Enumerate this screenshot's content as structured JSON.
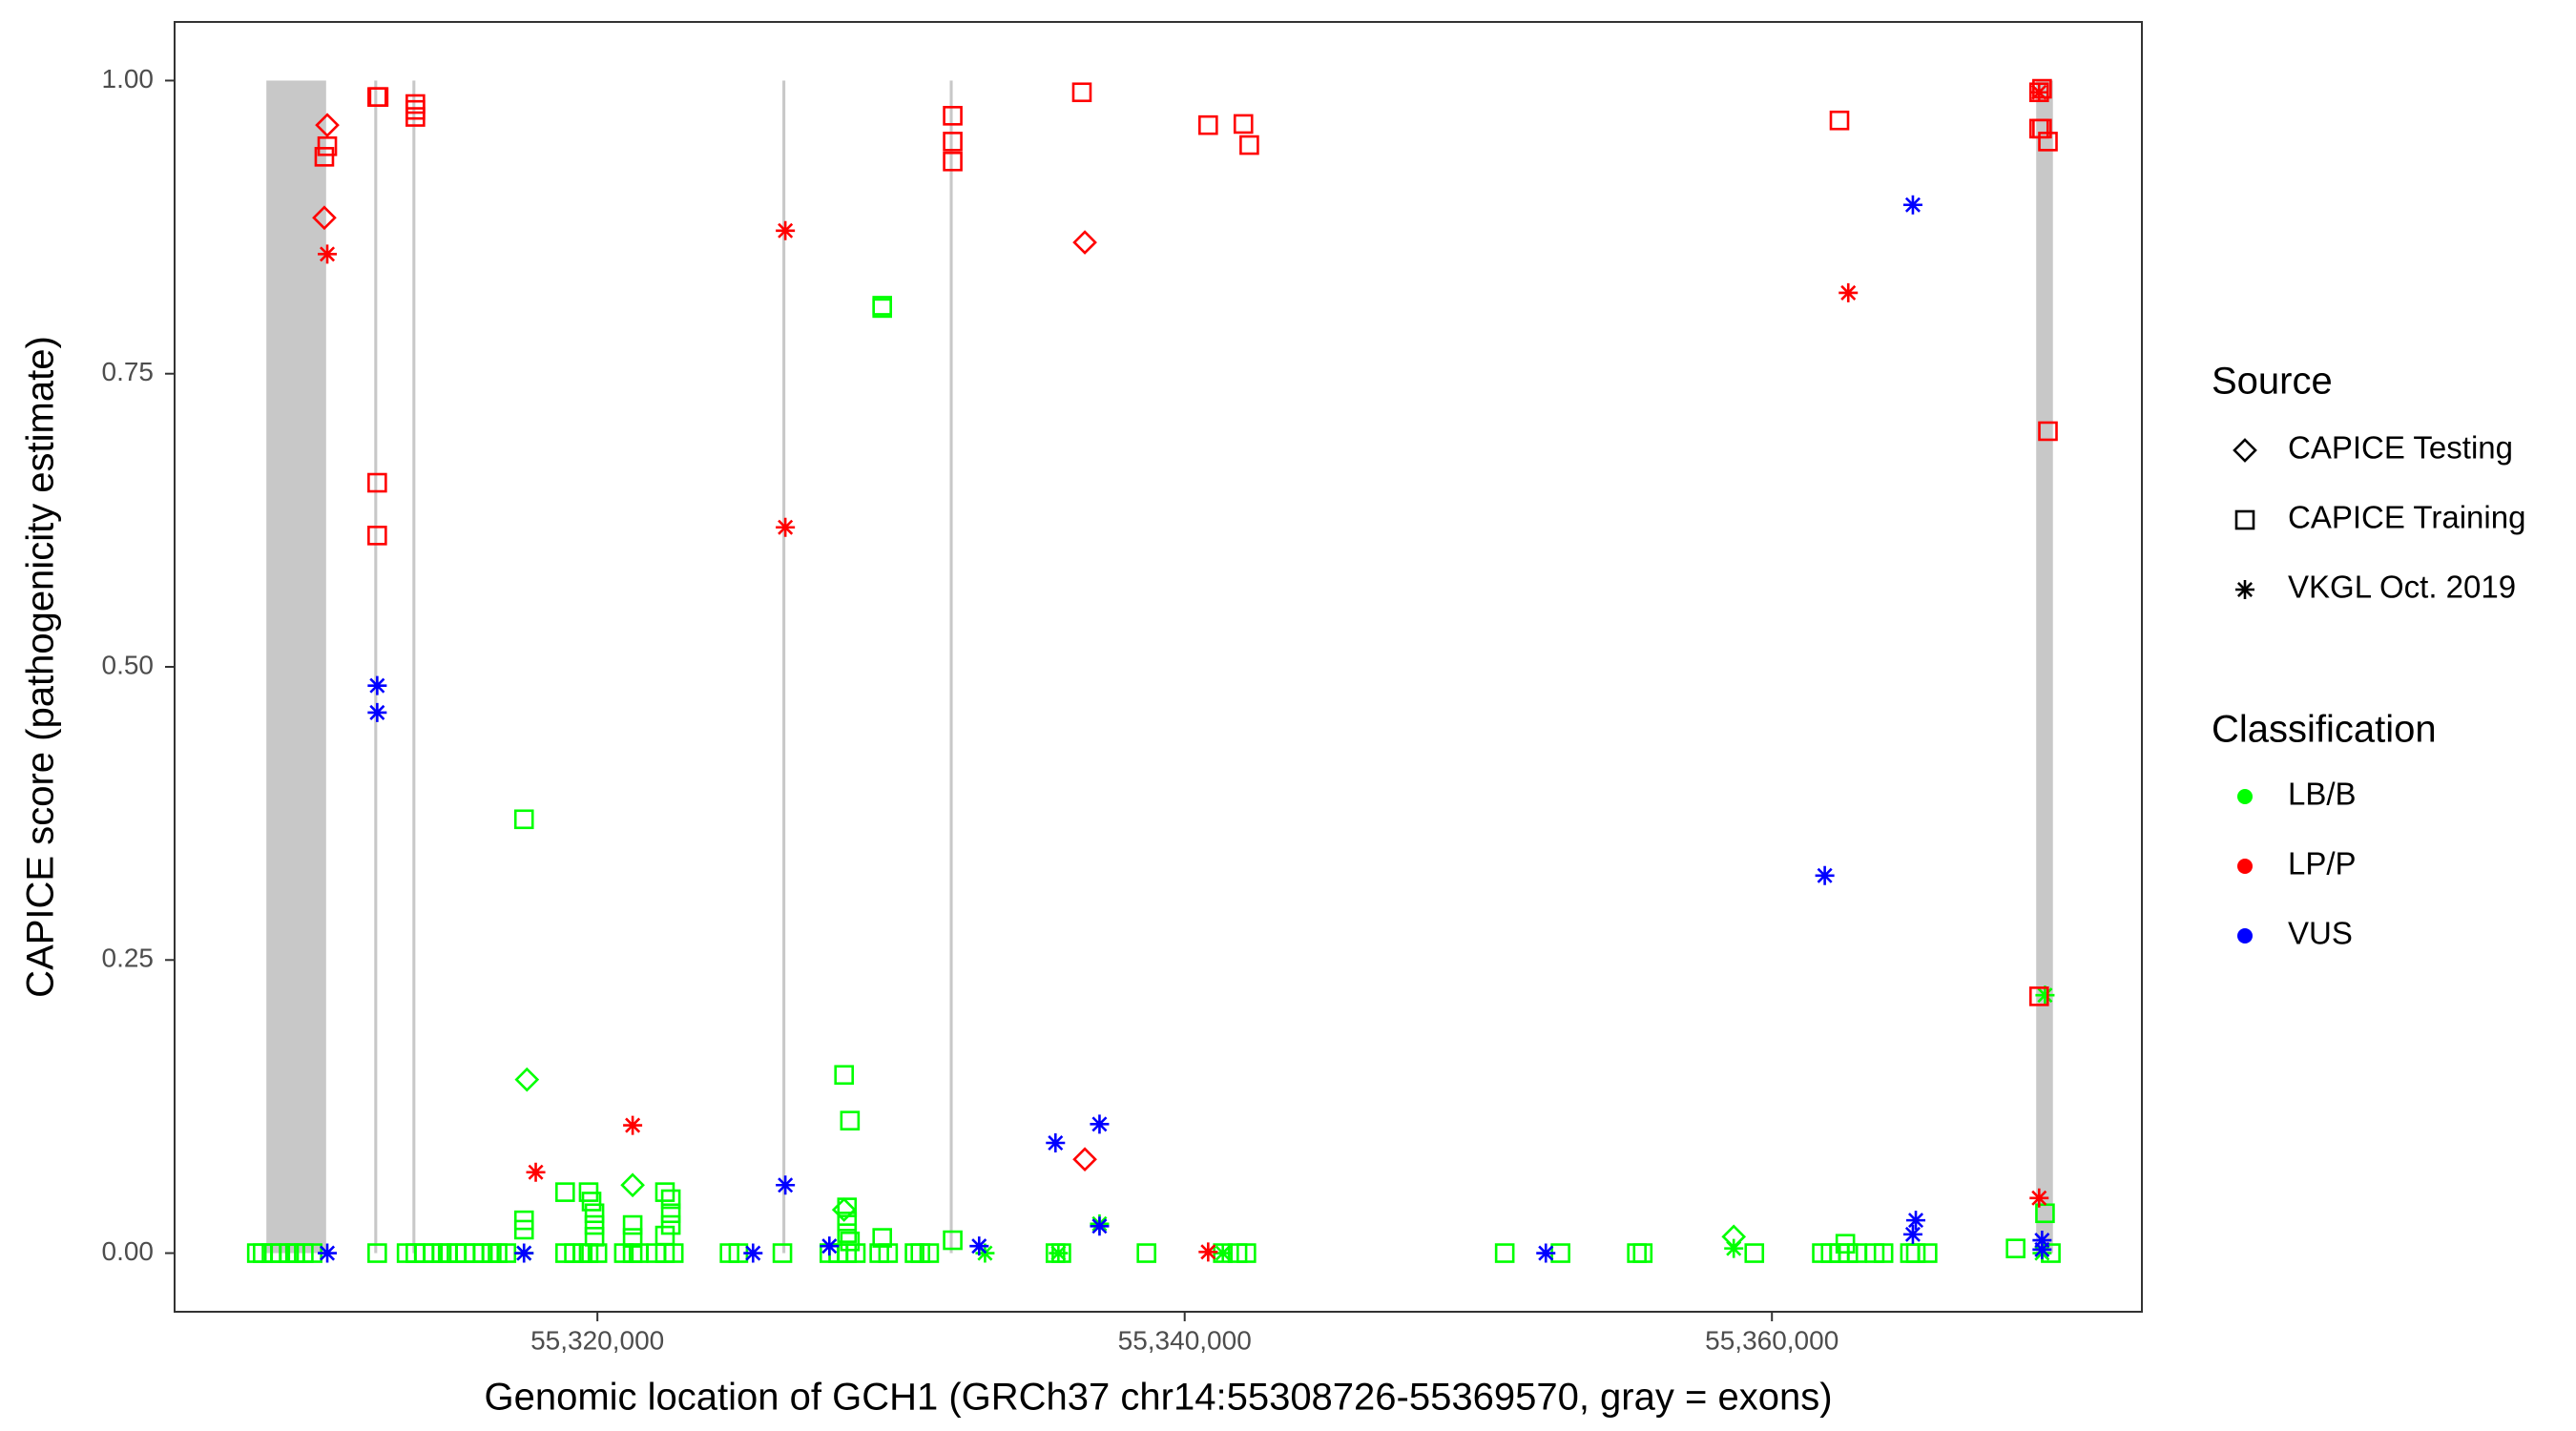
{
  "chart_data": {
    "type": "scatter",
    "x_label": "Genomic location of GCH1 (GRCh37 chr14:55308726-55369570, gray = exons)",
    "y_label": "CAPICE score (pathogenicity estimate)",
    "xlim": [
      55305600,
      55372600
    ],
    "ylim": [
      -0.05,
      1.05
    ],
    "xticks": [
      {
        "value": 55320000,
        "label": "55,320,000"
      },
      {
        "value": 55340000,
        "label": "55,340,000"
      },
      {
        "value": 55360000,
        "label": "55,360,000"
      }
    ],
    "yticks": [
      {
        "value": 0,
        "label": "0.00"
      },
      {
        "value": 0.25,
        "label": "0.25"
      },
      {
        "value": 0.5,
        "label": "0.50"
      },
      {
        "value": 0.75,
        "label": "0.75"
      },
      {
        "value": 1,
        "label": "1.00"
      }
    ],
    "exons": [
      [
        55308726,
        55310760
      ],
      [
        55312400,
        55312500
      ],
      [
        55313700,
        55313800
      ],
      [
        55326300,
        55326400
      ],
      [
        55332000,
        55332100
      ],
      [
        55369000,
        55369570
      ]
    ],
    "exon_color": "#c8c8c8",
    "legend_source_title": "Source",
    "sources": [
      {
        "name": "CAPICE Testing",
        "shape": "diamond"
      },
      {
        "name": "CAPICE Training",
        "shape": "square"
      },
      {
        "name": "VKGL Oct. 2019",
        "shape": "asterisk"
      }
    ],
    "legend_class_title": "Classification",
    "classifications": [
      {
        "name": "LB/B",
        "color": "#00ff00"
      },
      {
        "name": "LP/P",
        "color": "#ff0000"
      },
      {
        "name": "VUS",
        "color": "#0000ff"
      }
    ],
    "series": [
      {
        "source": "CAPICE Training",
        "classification": "LB/B",
        "x": [
          55317500,
          55328400,
          55328600,
          55329700,
          55329700,
          55318900,
          55319700,
          55319800,
          55319900,
          55319900,
          55319900,
          55317500,
          55317500,
          55321200,
          55321200,
          55322300,
          55322500,
          55322500,
          55322500,
          55322300,
          55328500,
          55328500,
          55328500,
          55328600,
          55329700,
          55332100,
          55362500,
          55368300,
          55369300,
          55308400,
          55308600,
          55308900,
          55309200,
          55309500,
          55309700,
          55310000,
          55310300,
          55312500,
          55313500,
          55313800,
          55314100,
          55314400,
          55314700,
          55314900,
          55315200,
          55315500,
          55315800,
          55316100,
          55316400,
          55316600,
          55316900,
          55318900,
          55319200,
          55319500,
          55319700,
          55320000,
          55320900,
          55321200,
          55321400,
          55322000,
          55322300,
          55322600,
          55324500,
          55324800,
          55326300,
          55327900,
          55328200,
          55328500,
          55328800,
          55329600,
          55329900,
          55330800,
          55331000,
          55331300,
          55335600,
          55335800,
          55338700,
          55341300,
          55341800,
          55342100,
          55350900,
          55352800,
          55355400,
          55355600,
          55359400,
          55361700,
          55362000,
          55362300,
          55362600,
          55362900,
          55363500,
          55363800,
          55364700,
          55364900,
          55365300,
          55369500
        ],
        "y": [
          0.37,
          0.152,
          0.113,
          0.808,
          0.806,
          0.052,
          0.052,
          0.044,
          0.034,
          0.024,
          0.014,
          0.028,
          0.02,
          0.024,
          0.013,
          0.052,
          0.046,
          0.034,
          0.024,
          0.015,
          0.039,
          0.027,
          0.017,
          0.01,
          0.013,
          0.011,
          0.008,
          0.004,
          0.034,
          0,
          0,
          0,
          0,
          0,
          0,
          0,
          0,
          0,
          0,
          0,
          0,
          0,
          0,
          0,
          0,
          0,
          0,
          0,
          0,
          0,
          0,
          0,
          0,
          0,
          0,
          0,
          0,
          0,
          0,
          0,
          0,
          0,
          0,
          0,
          0,
          0,
          0,
          0,
          0,
          0,
          0,
          0,
          0,
          0,
          0,
          0,
          0,
          0,
          0,
          0,
          0,
          0,
          0,
          0,
          0,
          0,
          0,
          0,
          0,
          0,
          0,
          0,
          0,
          0,
          0,
          0
        ]
      },
      {
        "source": "CAPICE Testing",
        "classification": "LB/B",
        "x": [
          55317600,
          55321200,
          55328400,
          55358700
        ],
        "y": [
          0.148,
          0.058,
          0.037,
          0.014
        ]
      },
      {
        "source": "VKGL Oct. 2019",
        "classification": "LB/B",
        "x": [
          55317500,
          55333200,
          55335700,
          55341300,
          55358700,
          55369300,
          55369200,
          55337100
        ],
        "y": [
          0,
          0,
          0,
          0,
          0.004,
          0.22,
          0,
          0.025
        ]
      },
      {
        "source": "CAPICE Training",
        "classification": "LP/P",
        "x": [
          55310700,
          55310800,
          55312500,
          55312550,
          55313800,
          55313800,
          55313800,
          55312500,
          55312500,
          55332100,
          55332100,
          55332100,
          55336500,
          55340800,
          55342000,
          55342200,
          55362300,
          55369100,
          55369200,
          55369100,
          55369200,
          55369400,
          55369400,
          55369100
        ],
        "y": [
          0.935,
          0.944,
          0.986,
          0.986,
          0.98,
          0.975,
          0.969,
          0.657,
          0.612,
          0.97,
          0.948,
          0.931,
          0.99,
          0.962,
          0.963,
          0.945,
          0.966,
          0.99,
          0.993,
          0.959,
          0.959,
          0.948,
          0.701,
          0.219
        ]
      },
      {
        "source": "CAPICE Testing",
        "classification": "LP/P",
        "x": [
          55310800,
          55310700,
          55336600,
          55336600
        ],
        "y": [
          0.962,
          0.883,
          0.862,
          0.08
        ]
      },
      {
        "source": "VKGL Oct. 2019",
        "classification": "LP/P",
        "x": [
          55310800,
          55326400,
          55326400,
          55362600,
          55317900,
          55321200,
          55340800,
          55369100,
          55369100
        ],
        "y": [
          0.852,
          0.872,
          0.619,
          0.819,
          0.069,
          0.109,
          0.001,
          0.99,
          0.047
        ]
      },
      {
        "source": "VKGL Oct. 2019",
        "classification": "VUS",
        "x": [
          55310800,
          55312500,
          55312500,
          55364800,
          55361800,
          55326400,
          55335600,
          55337100,
          55337100,
          55325300,
          55327900,
          55333000,
          55352300,
          55364900,
          55364800,
          55369200,
          55369200,
          55317500
        ],
        "y": [
          0,
          0.484,
          0.461,
          0.894,
          0.322,
          0.058,
          0.094,
          0.11,
          0.023,
          0,
          0.006,
          0.006,
          0,
          0.028,
          0.016,
          0.011,
          0.003,
          0
        ]
      }
    ]
  }
}
